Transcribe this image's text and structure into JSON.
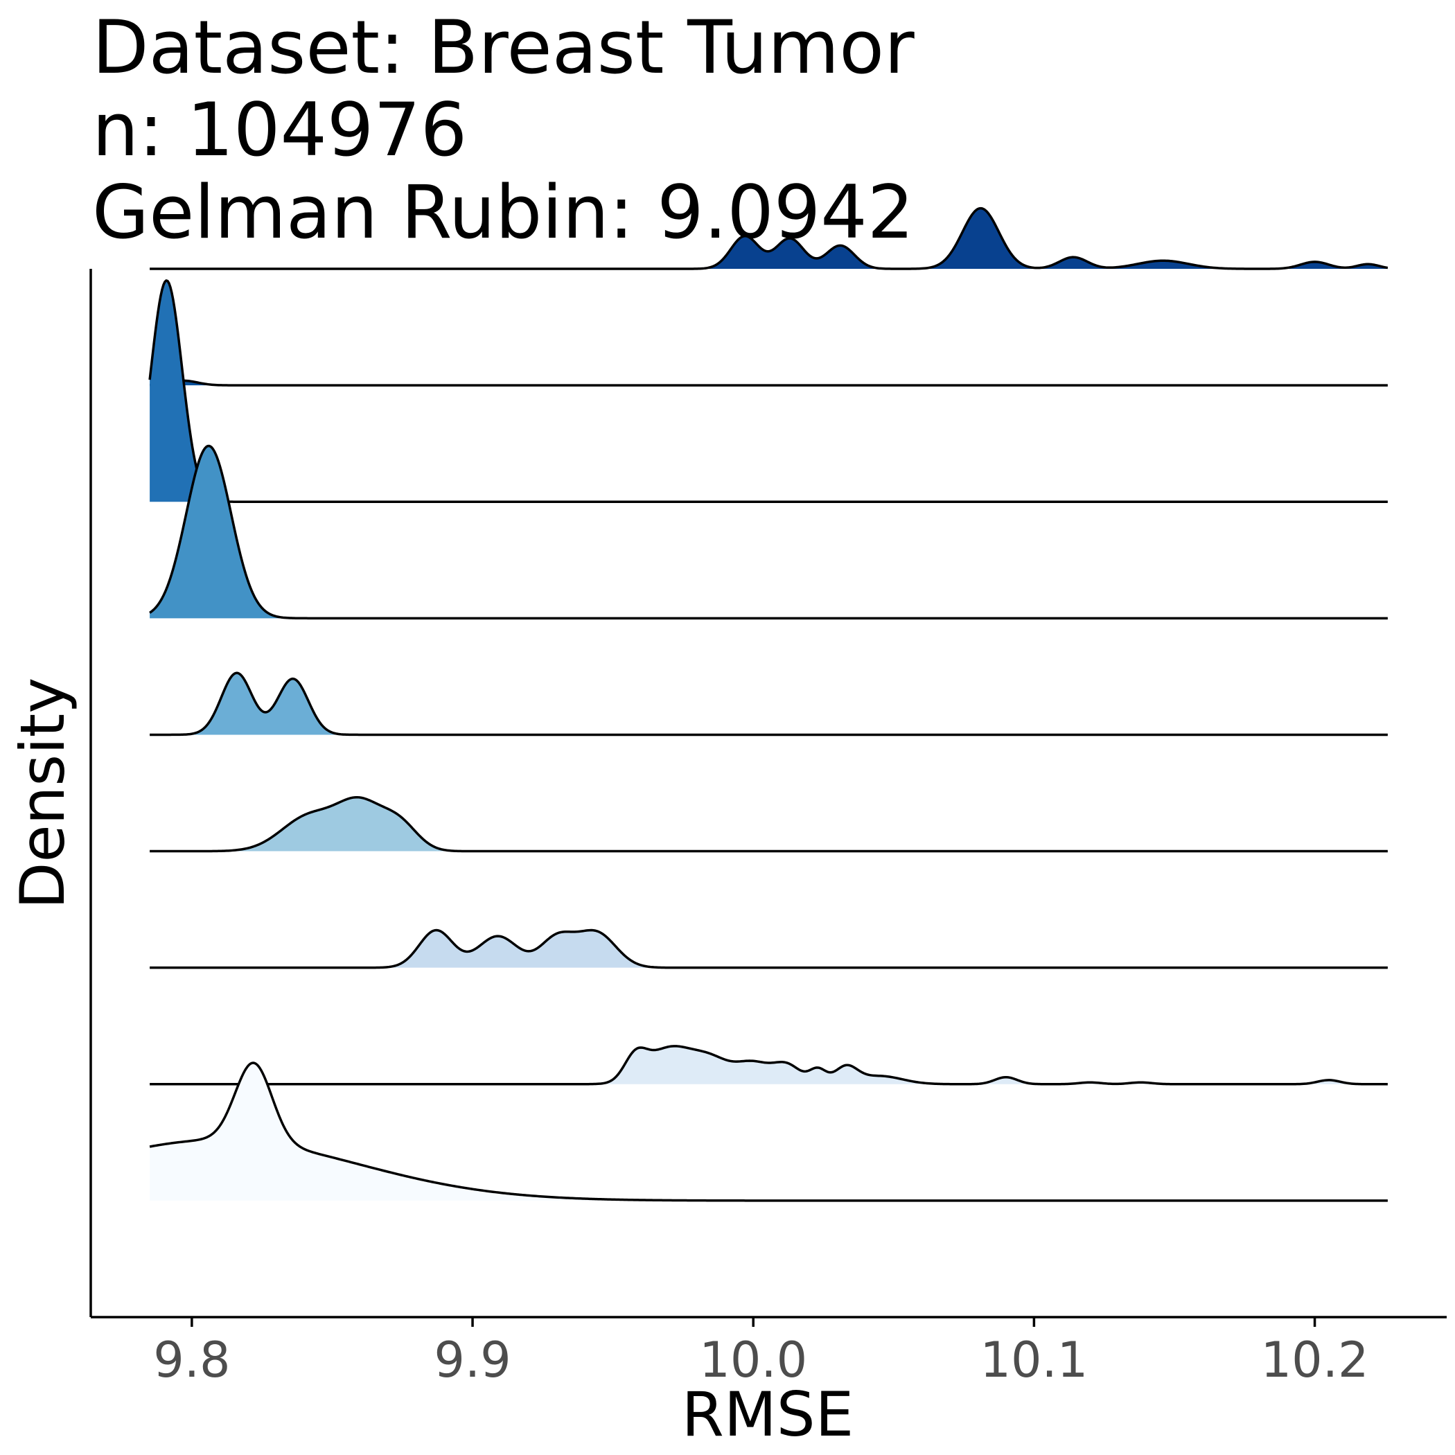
{
  "chart_data": {
    "type": "ridgeline",
    "title_lines": [
      "Dataset: Breast Tumor",
      "n: 104976",
      "Gelman Rubin: 9.0942"
    ],
    "xlabel": "RMSE",
    "ylabel": "Density",
    "xlim": [
      9.764,
      10.247
    ],
    "x_range": [
      9.785,
      10.226
    ],
    "x_ticks": [
      9.8,
      9.9,
      10.0,
      10.1,
      10.2
    ],
    "x_tick_labels": [
      "9.8",
      "9.9",
      "10.0",
      "10.1",
      "10.2"
    ],
    "ridge_count": 9,
    "ridges": [
      {
        "color": "#f7fbff",
        "peaks": [
          [
            9.809,
            0.05,
            0.52
          ],
          [
            9.822,
            0.0065,
            0.68
          ]
        ]
      },
      {
        "color": "#deebf7",
        "peaks": [
          [
            9.958,
            0.004,
            0.2
          ],
          [
            9.97,
            0.008,
            0.3
          ],
          [
            9.985,
            0.007,
            0.2
          ],
          [
            10.0,
            0.006,
            0.17
          ],
          [
            10.012,
            0.005,
            0.16
          ],
          [
            10.023,
            0.003,
            0.12
          ],
          [
            10.033,
            0.004,
            0.14
          ],
          [
            10.045,
            0.008,
            0.07
          ],
          [
            10.09,
            0.004,
            0.06
          ],
          [
            10.12,
            0.004,
            0.015
          ],
          [
            10.138,
            0.004,
            0.015
          ],
          [
            10.205,
            0.004,
            0.035
          ]
        ]
      },
      {
        "color": "#c6dbef",
        "peaks": [
          [
            9.887,
            0.006,
            0.32
          ],
          [
            9.909,
            0.007,
            0.27
          ],
          [
            9.93,
            0.006,
            0.25
          ],
          [
            9.944,
            0.007,
            0.3
          ]
        ]
      },
      {
        "color": "#9ecae1",
        "peaks": [
          [
            9.842,
            0.01,
            0.3
          ],
          [
            9.86,
            0.008,
            0.38
          ],
          [
            9.874,
            0.0065,
            0.22
          ]
        ]
      },
      {
        "color": "#6baed6",
        "peaks": [
          [
            9.816,
            0.0055,
            0.53
          ],
          [
            9.836,
            0.0055,
            0.48
          ]
        ]
      },
      {
        "color": "#4292c6",
        "peaks": [
          [
            9.806,
            0.008,
            1.48
          ]
        ]
      },
      {
        "color": "#2171b5",
        "peaks": [
          [
            9.791,
            0.0055,
            1.9
          ]
        ]
      },
      {
        "color": "#08519c",
        "peaks": [
          [
            9.797,
            0.005,
            0.04
          ]
        ]
      },
      {
        "color": "#08418f",
        "peaks": [
          [
            9.997,
            0.005,
            0.28
          ],
          [
            10.013,
            0.005,
            0.26
          ],
          [
            10.031,
            0.005,
            0.2
          ],
          [
            10.081,
            0.0065,
            0.52
          ],
          [
            10.114,
            0.005,
            0.1
          ],
          [
            10.146,
            0.009,
            0.07
          ],
          [
            10.2,
            0.005,
            0.06
          ],
          [
            10.219,
            0.004,
            0.04
          ]
        ]
      }
    ]
  }
}
